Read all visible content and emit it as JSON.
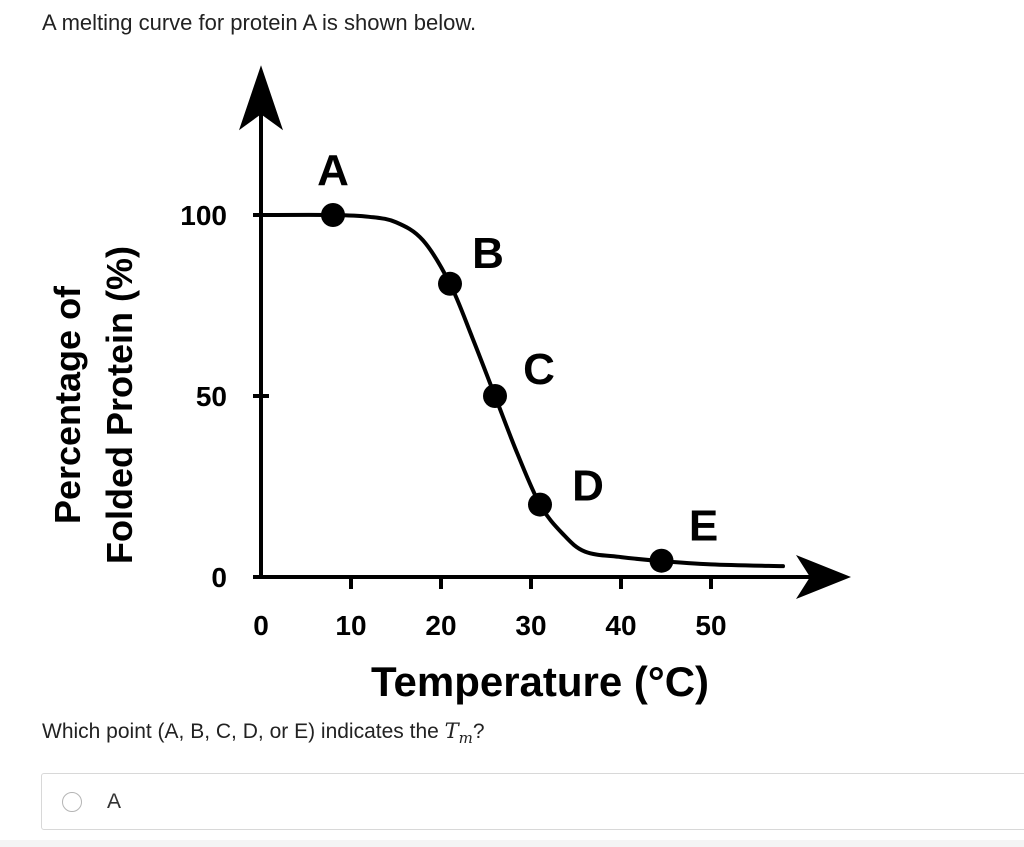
{
  "intro_text": "A melting curve for protein A is shown below.",
  "question": {
    "prefix": "Which point (A, B, C, D, or E) indicates the ",
    "tm_symbol": "T",
    "tm_sub": "m",
    "suffix": "?"
  },
  "options": [
    {
      "label": "A"
    }
  ],
  "chart_data": {
    "type": "line",
    "xlabel": "Temperature (°C)",
    "ylabel_line1": "Percentage of",
    "ylabel_line2": "Folded Protein (%)",
    "xticks": [
      0,
      10,
      20,
      30,
      40,
      50
    ],
    "yticks": [
      0,
      50,
      100
    ],
    "xlim": [
      0,
      65
    ],
    "ylim": [
      0,
      140
    ],
    "curve": [
      [
        0,
        100
      ],
      [
        8,
        100
      ],
      [
        12,
        99.5
      ],
      [
        15,
        98
      ],
      [
        18,
        93
      ],
      [
        21,
        81
      ],
      [
        23.5,
        66
      ],
      [
        26,
        50
      ],
      [
        28.5,
        34
      ],
      [
        31,
        20
      ],
      [
        33.5,
        12
      ],
      [
        36,
        7
      ],
      [
        40,
        5.5
      ],
      [
        44,
        4.5
      ],
      [
        50,
        3.5
      ],
      [
        58,
        3
      ]
    ],
    "points": [
      {
        "label": "A",
        "x": 8,
        "y": 100
      },
      {
        "label": "B",
        "x": 21,
        "y": 81
      },
      {
        "label": "C",
        "x": 26,
        "y": 50
      },
      {
        "label": "D",
        "x": 31,
        "y": 20
      },
      {
        "label": "E",
        "x": 44.5,
        "y": 4.5
      }
    ],
    "grid": false,
    "legend": "none"
  }
}
